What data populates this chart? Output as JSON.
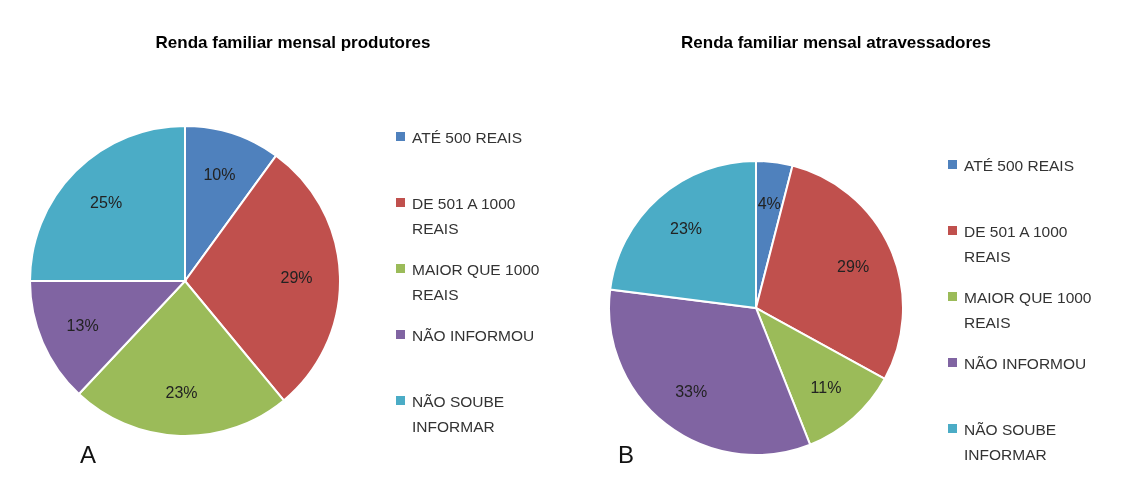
{
  "chart_data": [
    {
      "type": "pie",
      "title": "Renda familiar mensal produtores",
      "categories": [
        "ATÉ 500 REAIS",
        "DE 501 A 1000 REAIS",
        "MAIOR QUE 1000 REAIS",
        "NÃO INFORMOU",
        "NÃO SOUBE INFORMAR"
      ],
      "values": [
        10,
        29,
        23,
        13,
        25
      ],
      "value_labels": [
        "10%",
        "29%",
        "23%",
        "13%",
        "25%"
      ],
      "colors": [
        "#4f81bd",
        "#c0504d",
        "#9bbb59",
        "#8064a2",
        "#4bacc6"
      ],
      "legend": "right",
      "annotations": [
        "A"
      ]
    },
    {
      "type": "pie",
      "title": "Renda familiar mensal atravessadores",
      "categories": [
        "ATÉ 500 REAIS",
        "DE 501 A 1000 REAIS",
        "MAIOR QUE 1000 REAIS",
        "NÃO INFORMOU",
        "NÃO SOUBE INFORMAR"
      ],
      "values": [
        4,
        29,
        11,
        33,
        23
      ],
      "value_labels": [
        "4%",
        "29%",
        "11%",
        "33%",
        "23%"
      ],
      "colors": [
        "#4f81bd",
        "#c0504d",
        "#9bbb59",
        "#8064a2",
        "#4bacc6"
      ],
      "legend": "right",
      "annotations": [
        "B"
      ]
    }
  ]
}
